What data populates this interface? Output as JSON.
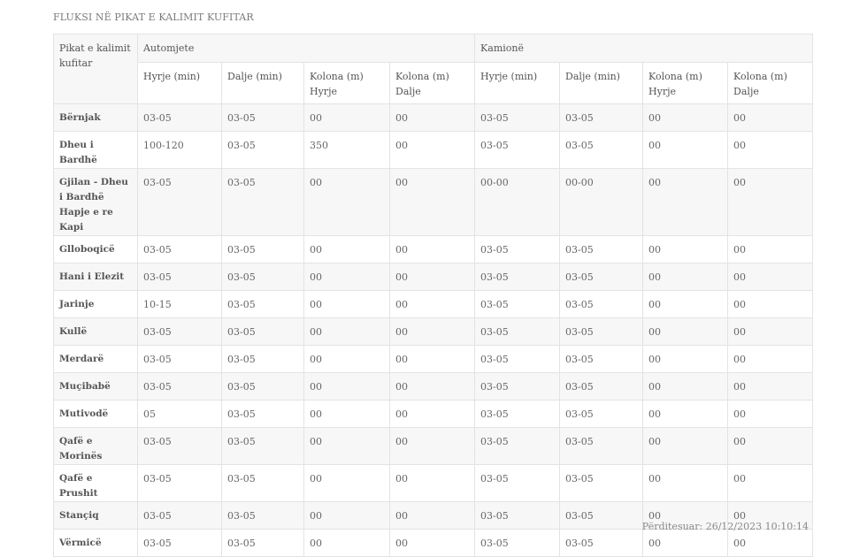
{
  "title": "FLUKSI NË PIKAT E KALIMIT KUFITAR",
  "table": {
    "corner_header": "Pikat e kalimit kufitar",
    "groups": [
      "Automjete",
      "Kamionë"
    ],
    "subheaders": [
      "Hyrje (min)",
      "Dalje (min)",
      "Kolona (m) Hyrje",
      "Kolona (m) Dalje",
      "Hyrje (min)",
      "Dalje (min)",
      "Kolona (m) Hyrje",
      "Kolona (m) Dalje"
    ],
    "rows": [
      {
        "name": "Bërnjak",
        "values": [
          "03-05",
          "03-05",
          "00",
          "00",
          "03-05",
          "03-05",
          "00",
          "00"
        ]
      },
      {
        "name": "Dheu i Bardhë",
        "values": [
          "100-120",
          "03-05",
          "350",
          "00",
          "03-05",
          "03-05",
          "00",
          "00"
        ]
      },
      {
        "name": "Gjilan - Dheu i Bardhë Hapje e re Kapi",
        "values": [
          "03-05",
          "03-05",
          "00",
          "00",
          "00-00",
          "00-00",
          "00",
          "00"
        ]
      },
      {
        "name": "Glloboqicë",
        "values": [
          "03-05",
          "03-05",
          "00",
          "00",
          "03-05",
          "03-05",
          "00",
          "00"
        ]
      },
      {
        "name": "Hani i Elezit",
        "values": [
          "03-05",
          "03-05",
          "00",
          "00",
          "03-05",
          "03-05",
          "00",
          "00"
        ]
      },
      {
        "name": "Jarinje",
        "values": [
          "10-15",
          "03-05",
          "00",
          "00",
          "03-05",
          "03-05",
          "00",
          "00"
        ]
      },
      {
        "name": "Kullë",
        "values": [
          "03-05",
          "03-05",
          "00",
          "00",
          "03-05",
          "03-05",
          "00",
          "00"
        ]
      },
      {
        "name": "Merdarë",
        "values": [
          "03-05",
          "03-05",
          "00",
          "00",
          "03-05",
          "03-05",
          "00",
          "00"
        ]
      },
      {
        "name": "Muçibabë",
        "values": [
          "03-05",
          "03-05",
          "00",
          "00",
          "03-05",
          "03-05",
          "00",
          "00"
        ]
      },
      {
        "name": "Mutivodë",
        "values": [
          "05",
          "03-05",
          "00",
          "00",
          "03-05",
          "03-05",
          "00",
          "00"
        ]
      },
      {
        "name": "Qafë e Morinës",
        "values": [
          "03-05",
          "03-05",
          "00",
          "00",
          "03-05",
          "03-05",
          "00",
          "00"
        ]
      },
      {
        "name": "Qafë e Prushit",
        "values": [
          "03-05",
          "03-05",
          "00",
          "00",
          "03-05",
          "03-05",
          "00",
          "00"
        ]
      },
      {
        "name": "Stançiq",
        "values": [
          "03-05",
          "03-05",
          "00",
          "00",
          "03-05",
          "03-05",
          "00",
          "00"
        ]
      },
      {
        "name": "Vërmicë",
        "values": [
          "03-05",
          "03-05",
          "00",
          "00",
          "03-05",
          "03-05",
          "00",
          "00"
        ]
      }
    ]
  },
  "updated": "Përditesuar: 26/12/2023 10:10:14"
}
